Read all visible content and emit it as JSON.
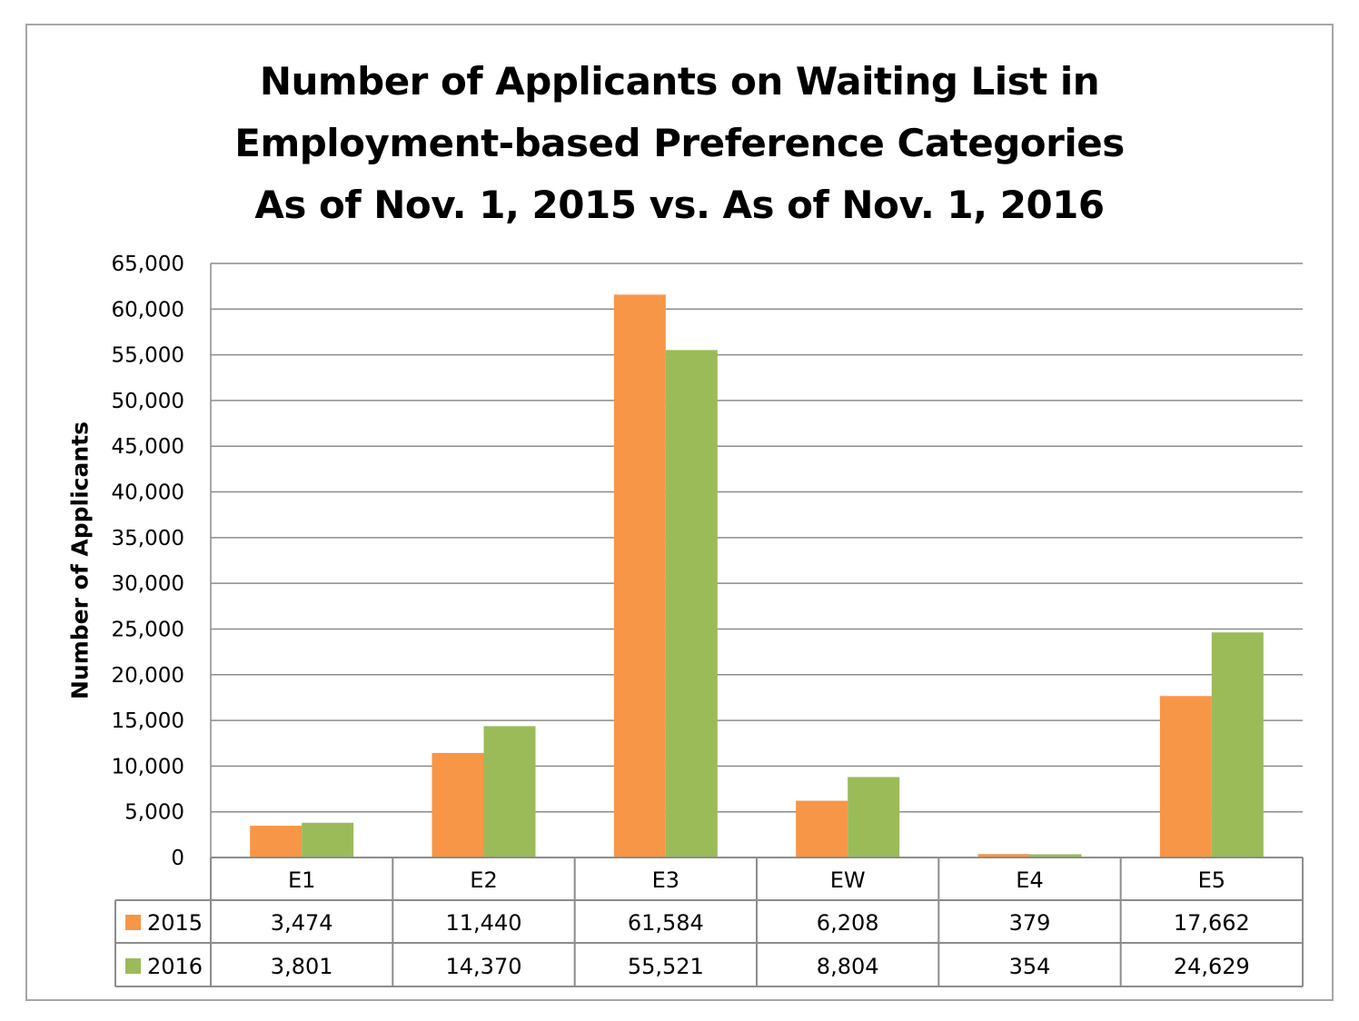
{
  "chart_data": {
    "type": "bar",
    "title": [
      "Number of Applicants on Waiting List in",
      "Employment-based Preference Categories",
      "As of Nov. 1, 2015 vs. As of Nov. 1, 2016"
    ],
    "xlabel": "",
    "ylabel": "Number of Applicants",
    "ylim": [
      0,
      65000
    ],
    "ytick_step": 5000,
    "ytick_labels": [
      "0",
      "5,000",
      "10,000",
      "15,000",
      "20,000",
      "25,000",
      "30,000",
      "35,000",
      "40,000",
      "45,000",
      "50,000",
      "55,000",
      "60,000",
      "65,000"
    ],
    "grid": true,
    "legend": "data-table",
    "categories": [
      "E1",
      "E2",
      "E3",
      "EW",
      "E4",
      "E5"
    ],
    "series": [
      {
        "name": "2015",
        "color": "#f79646",
        "values": [
          3474,
          11440,
          61584,
          6208,
          379,
          17662
        ],
        "labels": [
          "3,474",
          "11,440",
          "61,584",
          "6,208",
          "379",
          "17,662"
        ]
      },
      {
        "name": "2016",
        "color": "#9bbb59",
        "values": [
          3801,
          14370,
          55521,
          8804,
          354,
          24629
        ],
        "labels": [
          "3,801",
          "14,370",
          "55,521",
          "8,804",
          "354",
          "24,629"
        ]
      }
    ]
  }
}
